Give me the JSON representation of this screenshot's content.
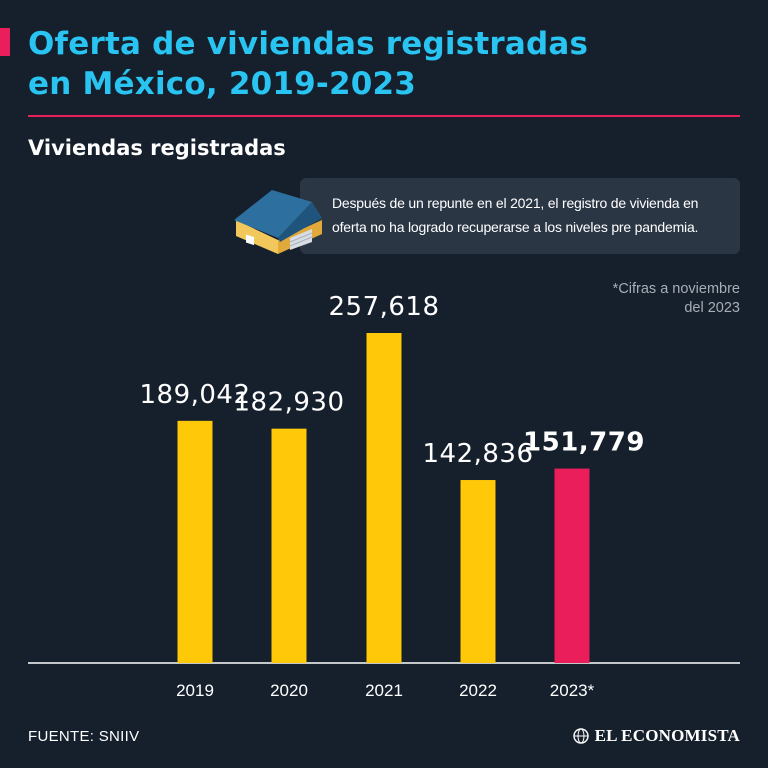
{
  "header": {
    "title_line1": "Oferta de viviendas registradas",
    "title_line2": "en México, 2019-2023",
    "subtitle": "Viviendas registradas"
  },
  "callout": {
    "text": "Después de un repunte en el 2021, el registro de vivienda en oferta no ha logrado recuperarse a los niveles pre pandemia.",
    "icon": "house-icon"
  },
  "note": "*Cifras a noviembre\ndel 2023",
  "footer": {
    "source": "FUENTE: SNIIV",
    "brand": "EL ECONOMISTA",
    "brand_icon": "globe-logo-icon"
  },
  "colors": {
    "background": "#16202c",
    "title": "#29c4f1",
    "accent": "#e91e5a",
    "bar": "#ffc909",
    "bar_highlight": "#e91e5a"
  },
  "chart_data": {
    "type": "bar",
    "title": "Viviendas registradas",
    "categories": [
      "2019",
      "2020",
      "2021",
      "2022",
      "2023*"
    ],
    "values": [
      189042,
      182930,
      257618,
      142836,
      151779
    ],
    "value_labels": [
      "189,042",
      "182,930",
      "257,618",
      "142,836",
      "151,779"
    ],
    "highlight_index": 4,
    "xlabel": "",
    "ylabel": "",
    "ylim": [
      0,
      257618
    ],
    "grid": false
  }
}
